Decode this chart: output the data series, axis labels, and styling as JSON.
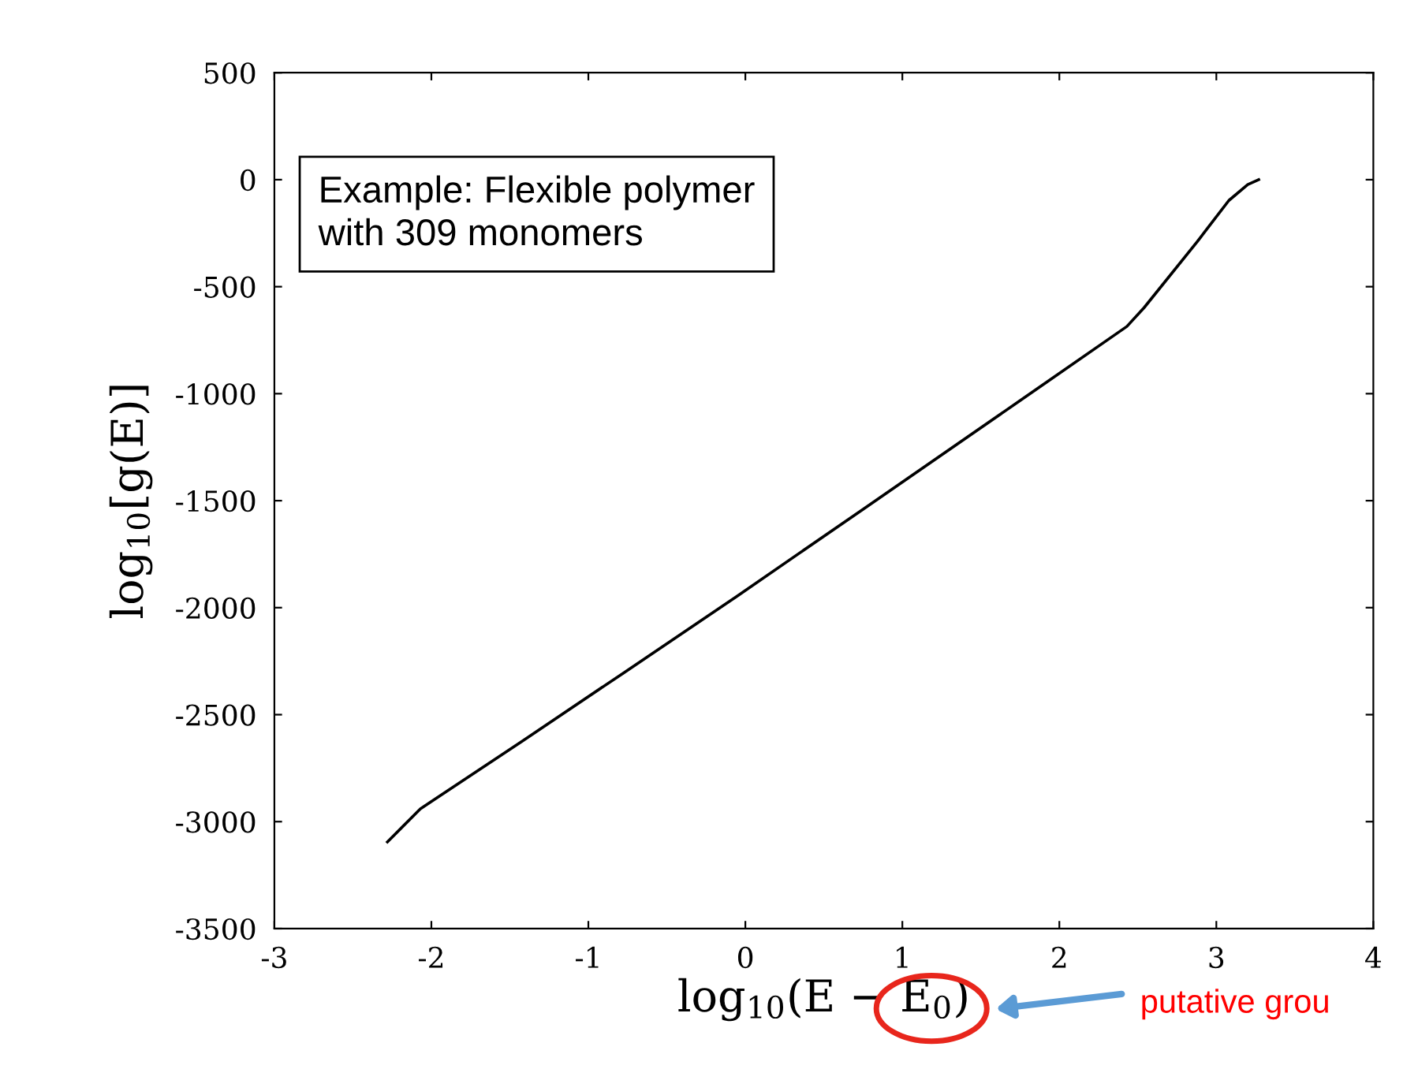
{
  "chart_data": {
    "type": "line",
    "xlabel": "log$_{10}$(E − E$_{0}$)",
    "ylabel": "log$_{10}$[g(E)]",
    "x": [
      -2.28,
      -2.07,
      -1.42,
      -0.78,
      -0.06,
      0.75,
      1.91,
      2.43,
      2.54,
      2.88,
      3.08,
      3.2,
      3.27
    ],
    "series": [
      {
        "color": "#000000",
        "values": [
          -3095,
          -2940,
          -2623,
          -2307,
          -1950,
          -1540,
          -951,
          -686,
          -598,
          -288,
          -97,
          -23,
          0
        ]
      }
    ],
    "xlim": [
      -3,
      4
    ],
    "xticks": [
      -3,
      -2,
      -1,
      0,
      1,
      2,
      3,
      4
    ],
    "ylim": [
      -3500,
      500
    ],
    "yticks": [
      -3500,
      -3000,
      -2500,
      -2000,
      -1500,
      -1000,
      -500,
      0,
      500
    ],
    "grid": false,
    "legend": false,
    "marker": "none",
    "line_style": "solid",
    "annotations": [
      "Example: Flexible polymer\nwith 309 monomers",
      "putative grou"
    ]
  }
}
